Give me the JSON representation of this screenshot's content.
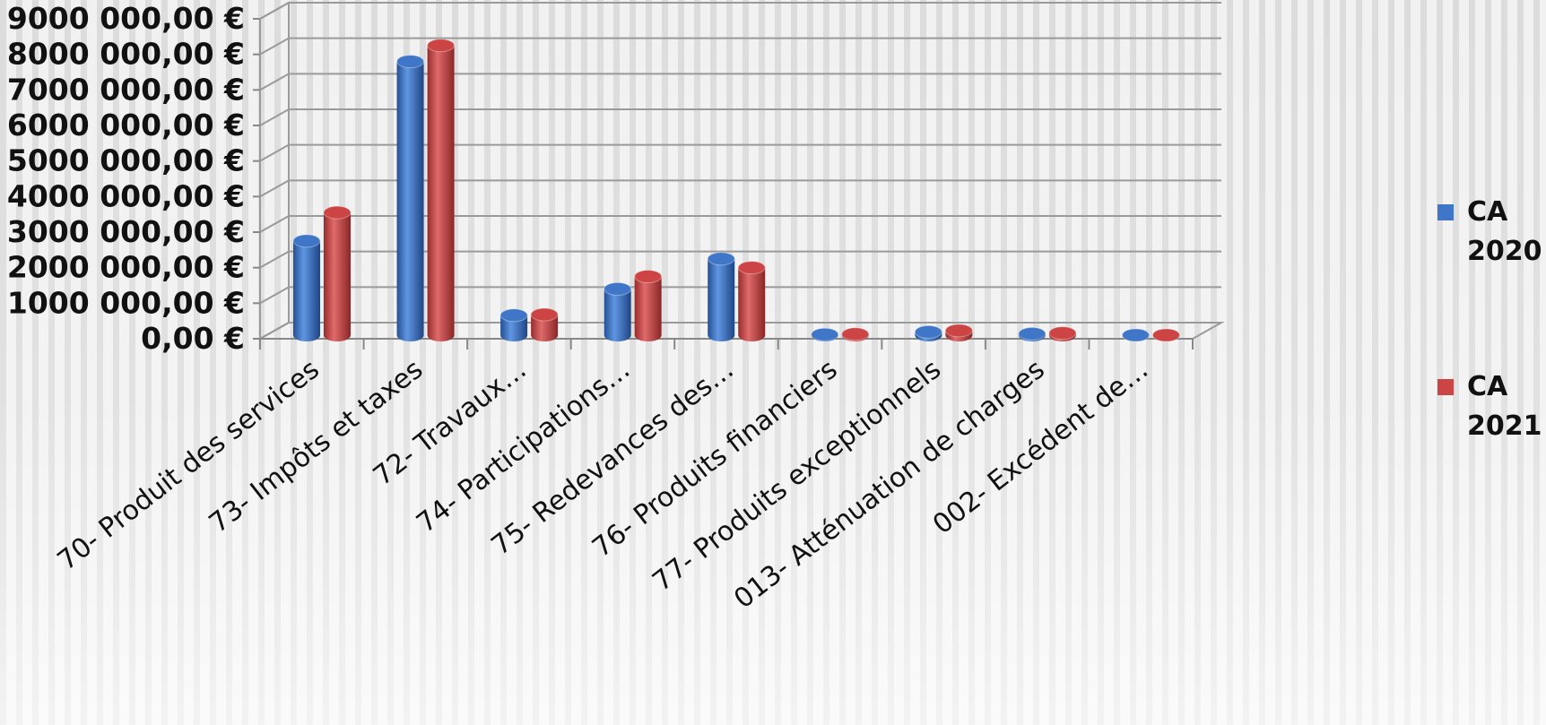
{
  "chart_data": {
    "type": "bar",
    "style": "3d-cylinder",
    "categories": [
      "70- Produit des services",
      "73- Impôts et taxes",
      "72- Travaux…",
      "74- Participations…",
      "75- Redevances des…",
      "76- Produits financiers",
      "77- Produits exceptionnels",
      "013- Atténuation de charges",
      "002- Excédent de…"
    ],
    "series": [
      {
        "name": "CA 2020",
        "name_lines": [
          "CA",
          "2020"
        ],
        "color": "#3f76c7",
        "values": [
          2650000,
          7700000,
          560000,
          1300000,
          2150000,
          20000,
          90000,
          40000,
          0
        ]
      },
      {
        "name": "CA 2021",
        "name_lines": [
          "CA",
          "2021"
        ],
        "color": "#cc4444",
        "values": [
          3450000,
          8150000,
          580000,
          1650000,
          1900000,
          30000,
          130000,
          60000,
          0
        ]
      }
    ],
    "yticks": [
      "0,00 €",
      "1000 000,00 €",
      "2000 000,00 €",
      "3000 000,00 €",
      "4000 000,00 €",
      "5000 000,00 €",
      "6000 000,00 €",
      "7000 000,00 €",
      "8000 000,00 €",
      "9000 000,00 €"
    ],
    "ylim": [
      0,
      9000000
    ],
    "title": "",
    "xlabel": "",
    "ylabel": "",
    "grid": true,
    "legend": "right"
  }
}
